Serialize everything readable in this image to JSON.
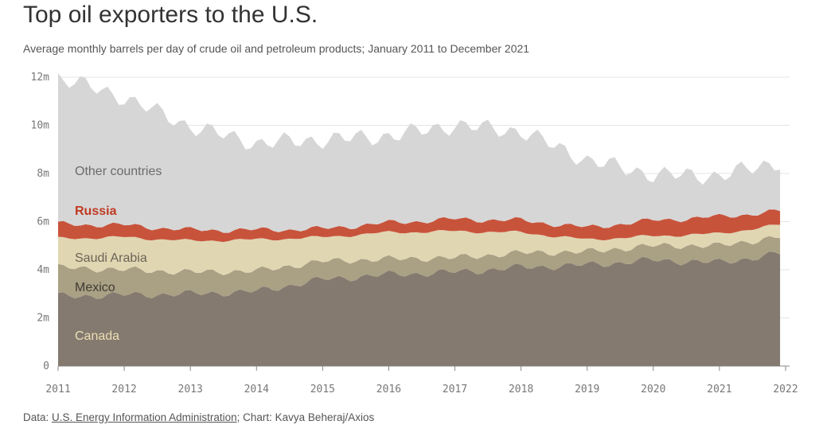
{
  "title": "Top oil exporters to the U.S.",
  "subtitle": "Average monthly barrels per day of crude oil and petroleum products; January 2011 to December 2021",
  "footer": {
    "data_prefix": "Data: ",
    "source_link": "U.S. Energy Information Administration",
    "chart_credit": "; Chart: Kavya Beheraj/Axios"
  },
  "colors": {
    "Canada": "#847a6f",
    "Mexico": "#aaa084",
    "Saudi Arabia": "#e0d6b2",
    "Russia": "#c8533b",
    "Other countries": "#d6d6d6"
  },
  "chart_data": {
    "type": "area",
    "stacked": true,
    "x_unit": "months",
    "x_start": "2011-01",
    "x_end": "2021-12",
    "xticks": [
      "2011",
      "2012",
      "2013",
      "2014",
      "2015",
      "2016",
      "2017",
      "2018",
      "2019",
      "2020",
      "2021",
      "2022"
    ],
    "yticks": [
      "0",
      "2m",
      "4m",
      "6m",
      "8m",
      "10m",
      "12m"
    ],
    "ylim": [
      0,
      12
    ],
    "y_unit": "million barrels per day",
    "grid": true,
    "legend_placement": "inline labels inside areas",
    "series": [
      {
        "name": "Canada",
        "label_color": "#ecdfb6",
        "note": "yearly anchor values (Jan of each year), interpolated monthly",
        "anchors": [
          2.9,
          2.95,
          3.0,
          3.1,
          3.6,
          3.8,
          3.9,
          4.1,
          4.2,
          4.4,
          4.3,
          4.7
        ]
      },
      {
        "name": "Mexico",
        "label_color": "#3f3a33",
        "anchors": [
          1.2,
          1.05,
          0.9,
          0.85,
          0.75,
          0.65,
          0.6,
          0.6,
          0.55,
          0.6,
          0.7,
          0.7
        ]
      },
      {
        "name": "Saudi Arabia",
        "label_color": "#6b6456",
        "anchors": [
          1.2,
          1.35,
          1.3,
          1.3,
          1.0,
          1.1,
          1.1,
          0.85,
          0.5,
          0.4,
          0.5,
          0.5
        ]
      },
      {
        "name": "Russia",
        "label_color": "#c03a22",
        "anchors": [
          0.6,
          0.5,
          0.45,
          0.4,
          0.35,
          0.4,
          0.5,
          0.5,
          0.5,
          0.65,
          0.7,
          0.55
        ]
      },
      {
        "name": "Other countries",
        "label_color": "#6b6b6b",
        "anchors": [
          6.1,
          5.3,
          4.3,
          3.6,
          3.7,
          3.6,
          3.9,
          3.7,
          2.8,
          1.9,
          1.7,
          2.1
        ]
      }
    ]
  }
}
